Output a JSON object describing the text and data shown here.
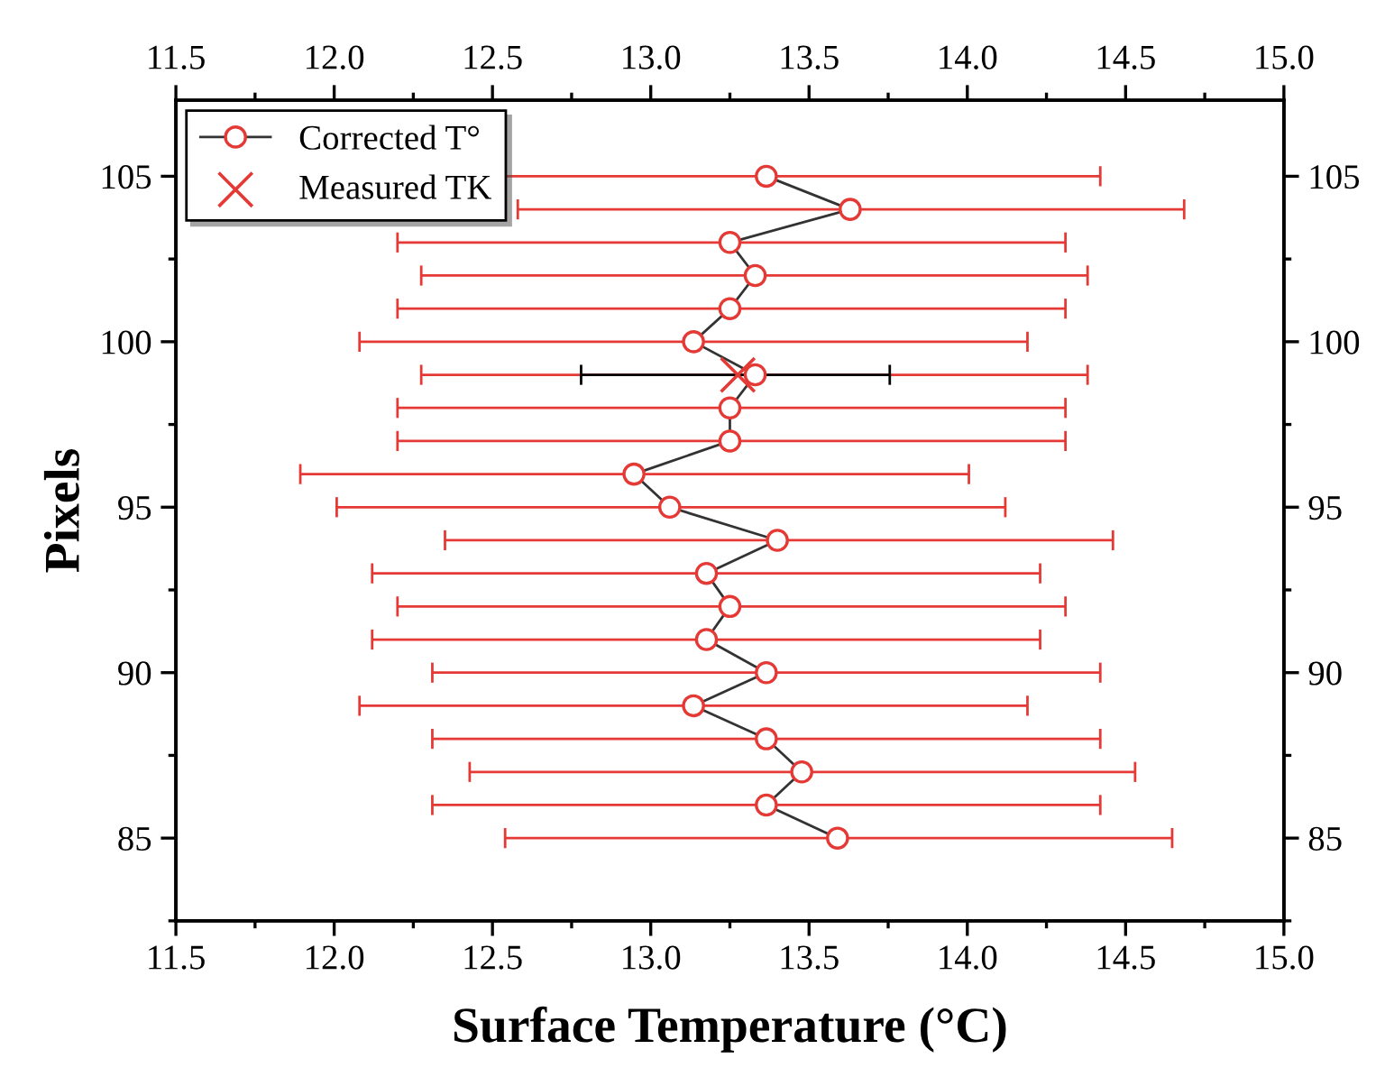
{
  "chart_data": {
    "type": "line",
    "xlabel": "Surface Temperature (°C)",
    "ylabel": "Pixels",
    "xlim": [
      11.5,
      15.0
    ],
    "xticks": [
      11.5,
      {
        "value": 12.0,
        "label": "12.0"
      },
      12.5,
      {
        "value": 13.0,
        "label": "13.0"
      },
      13.5,
      {
        "value": 14.0,
        "label": "14.0"
      },
      14.5,
      {
        "value": 15.0,
        "label": "15.0"
      }
    ],
    "x2lim": [
      11.5,
      15.0
    ],
    "x2ticks": [
      11.5,
      {
        "value": 12.0,
        "label": "12.0"
      },
      12.5,
      {
        "value": 13.0,
        "label": "13.0"
      },
      13.5,
      {
        "value": 14.0,
        "label": "14.0"
      },
      14.5,
      {
        "value": 15.0,
        "label": "15.0"
      }
    ],
    "ylim": [
      82.5,
      107.3
    ],
    "yticks": [
      85,
      90,
      95,
      100,
      105
    ],
    "y2lim": [
      82.5,
      107.3
    ],
    "y2ticks": [
      85,
      90,
      95,
      100,
      105
    ],
    "grid": false,
    "legend": "top left",
    "series": [
      {
        "name": "Corrected T°",
        "marker": "circle",
        "color": "#e53935",
        "x": [
          13.59,
          13.365,
          13.477,
          13.365,
          13.135,
          13.365,
          13.176,
          13.25,
          13.176,
          13.4,
          13.06,
          12.947,
          13.25,
          13.25,
          13.33,
          13.135,
          13.25,
          13.33,
          13.25,
          13.63,
          13.365
        ],
        "values": [
          85,
          86,
          87,
          88,
          89,
          90,
          91,
          92,
          93,
          94,
          95,
          96,
          97,
          98,
          99,
          100,
          101,
          102,
          103,
          104,
          105
        ],
        "xerrors": [
          [
            12.54,
            14.647
          ],
          [
            12.31,
            14.42
          ],
          [
            12.428,
            14.53
          ],
          [
            12.31,
            14.42
          ],
          [
            12.08,
            14.19
          ],
          [
            12.31,
            14.42
          ],
          [
            12.12,
            14.23
          ],
          [
            12.2,
            14.31
          ],
          [
            12.12,
            14.23
          ],
          [
            12.35,
            14.46
          ],
          [
            12.008,
            14.12
          ],
          [
            11.893,
            14.005
          ],
          [
            12.2,
            14.31
          ],
          [
            12.2,
            14.31
          ],
          [
            12.275,
            14.38
          ],
          [
            12.08,
            14.19
          ],
          [
            12.2,
            14.31
          ],
          [
            12.275,
            14.38
          ],
          [
            12.2,
            14.31
          ],
          [
            12.58,
            14.685
          ],
          [
            12.31,
            14.42
          ]
        ]
      },
      {
        "name": "Measured TK",
        "type": "scatter",
        "marker": "cross",
        "color": "#e53935",
        "x": [
          13.275
        ],
        "values": [
          99
        ],
        "xerrors": [
          [
            12.78,
            13.755
          ]
        ]
      }
    ]
  }
}
